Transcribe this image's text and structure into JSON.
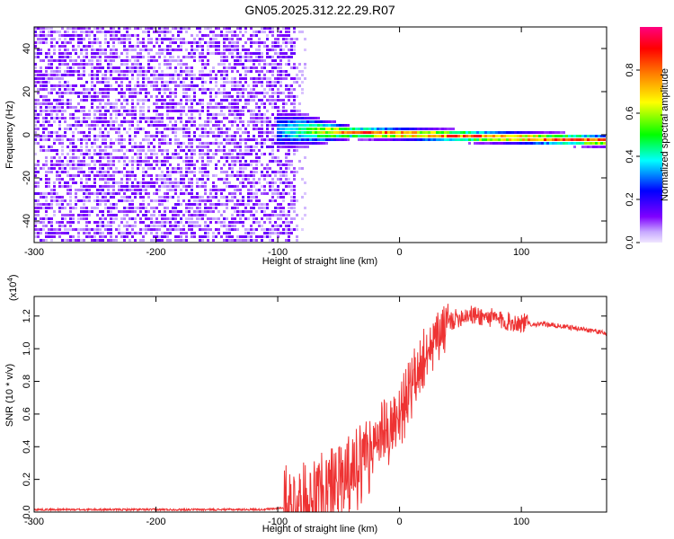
{
  "figure": {
    "title": "GN05.2025.312.22.29.R07"
  },
  "chart_data": [
    {
      "type": "heatmap",
      "title": "GN05.2025.312.22.29.R07",
      "xlabel": "Height of straight line (km)",
      "ylabel": "Frequency (Hz)",
      "xlim": [
        -300,
        170
      ],
      "ylim": [
        -50,
        50
      ],
      "x_ticks": [
        -300,
        -200,
        -100,
        0,
        100
      ],
      "x_tick_labels": [
        "-300",
        "-200",
        "-100",
        "0",
        "100"
      ],
      "y_ticks": [
        -40,
        -20,
        0,
        20,
        40
      ],
      "y_tick_labels": [
        "-40",
        "-20",
        "0",
        "20",
        "40"
      ],
      "colorbar": {
        "label": "Normalized spectral amplitude",
        "range": [
          0,
          1
        ],
        "ticks": [
          0.0,
          0.2,
          0.4,
          0.6,
          0.8
        ],
        "tick_labels": [
          "0.0",
          "0.2",
          "0.4",
          "0.6",
          "0.8"
        ],
        "colors": [
          "#f0e6ff",
          "#7f00ff",
          "#0000ff",
          "#00ffff",
          "#00ff00",
          "#ffff00",
          "#ff8000",
          "#ff0000",
          "#ff0080"
        ]
      },
      "noise_region": {
        "x_range": [
          -300,
          -85
        ],
        "freq_range": [
          -50,
          50
        ],
        "amplitude": [
          0.05,
          0.15
        ]
      },
      "signal_band": {
        "x_range": [
          -100,
          170
        ],
        "center_freq_start": 2,
        "center_freq_end": -3,
        "peak_amplitude": 0.95
      },
      "grid": false
    },
    {
      "type": "line",
      "xlabel": "Height of straight line (km)",
      "ylabel": "SNR (10 * v/v)",
      "y_scale_label": "(x10",
      "y_scale_exponent": "4",
      "y_scale_suffix": ")",
      "xlim": [
        -300,
        170
      ],
      "ylim": [
        0,
        1.32
      ],
      "x_ticks": [
        -300,
        -200,
        -100,
        0,
        100
      ],
      "x_tick_labels": [
        "-300",
        "-200",
        "-100",
        "0",
        "100"
      ],
      "y_ticks": [
        0.0,
        0.2,
        0.4,
        0.6,
        0.8,
        1.0,
        1.2
      ],
      "y_tick_labels": [
        "0.0",
        "0.2",
        "0.4",
        "0.6",
        "0.8",
        "1.0",
        "1.2"
      ],
      "grid": false,
      "series": [
        {
          "color": "#ee3333",
          "x": [
            -300,
            -250,
            -200,
            -150,
            -110,
            -90,
            -75,
            -65,
            -55,
            -45,
            -35,
            -25,
            -15,
            -5,
            5,
            15,
            25,
            35,
            45,
            55,
            65,
            75,
            85,
            95,
            100,
            110,
            120,
            130,
            140,
            150,
            160,
            170
          ],
          "y": [
            0.015,
            0.015,
            0.015,
            0.015,
            0.016,
            0.03,
            0.06,
            0.12,
            0.2,
            0.24,
            0.32,
            0.42,
            0.5,
            0.56,
            0.72,
            0.9,
            1.06,
            1.14,
            1.18,
            1.21,
            1.2,
            1.19,
            1.17,
            1.16,
            1.16,
            1.15,
            1.15,
            1.14,
            1.13,
            1.12,
            1.11,
            1.09
          ]
        }
      ]
    }
  ]
}
